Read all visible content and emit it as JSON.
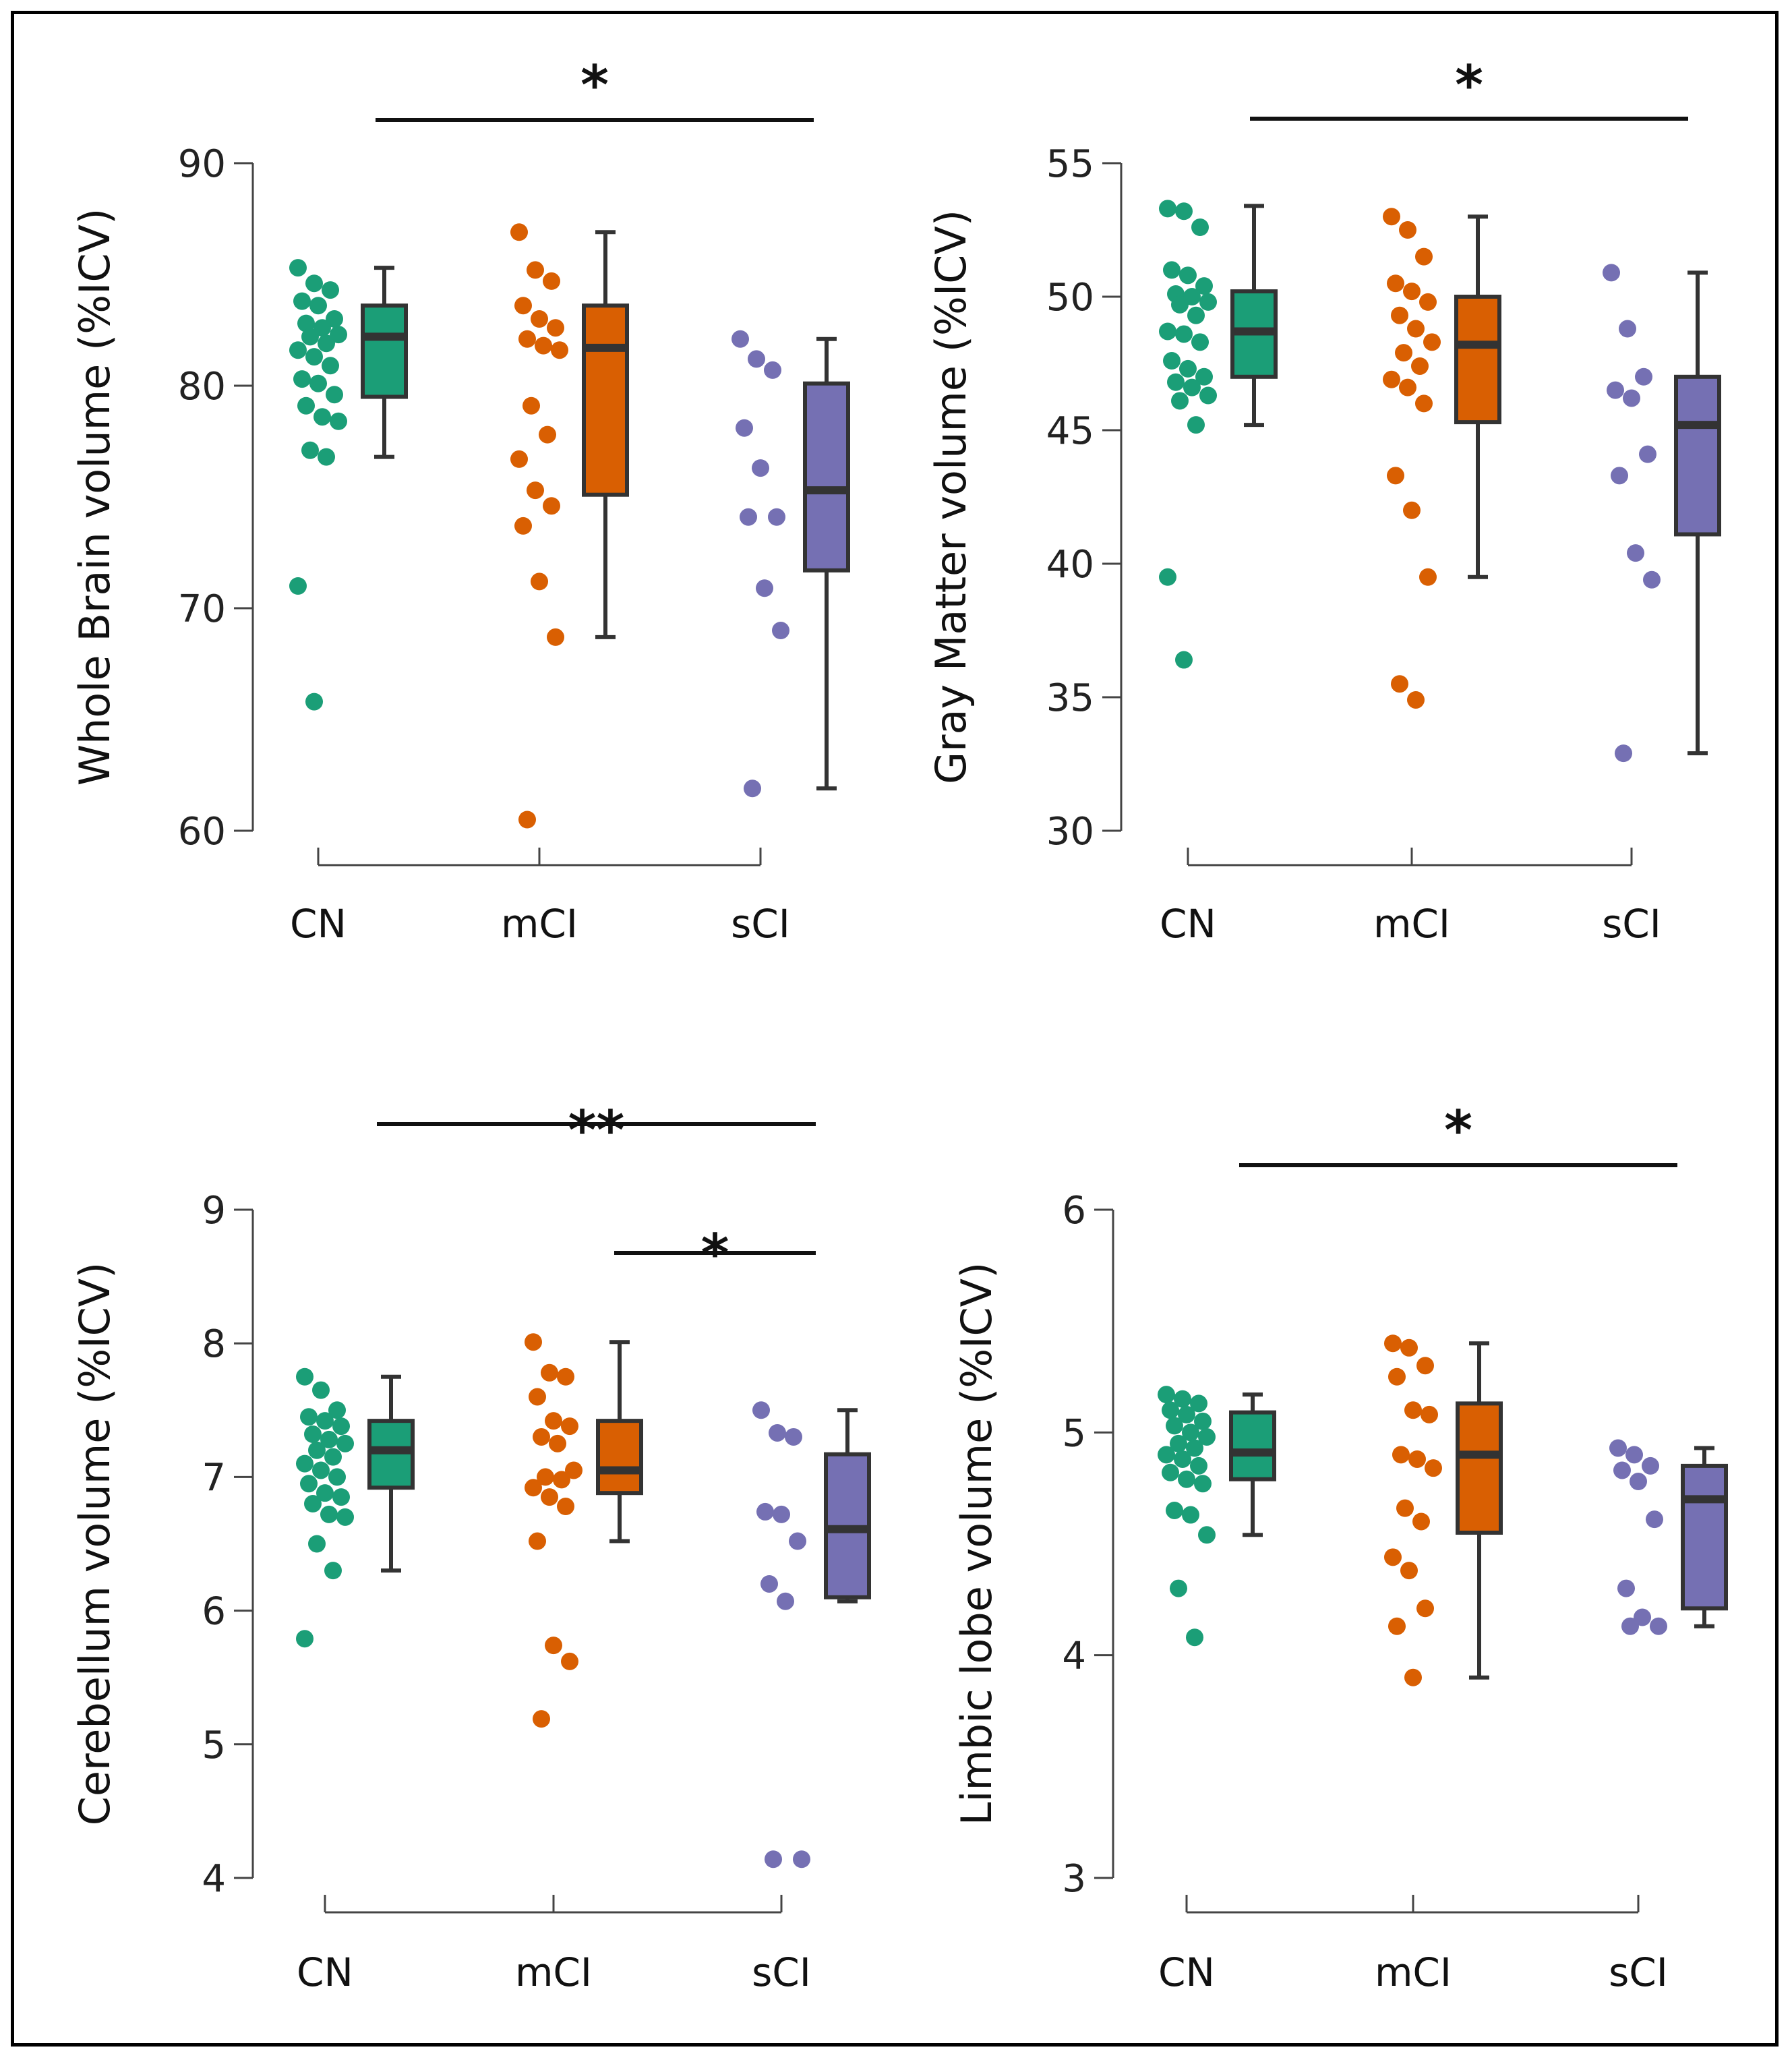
{
  "chart_data": [
    {
      "type": "box",
      "id": "whole-brain",
      "ylabel": "Whole Brain volume (%ICV)",
      "ylim": [
        60,
        90
      ],
      "yticks": [
        60,
        70,
        80,
        90
      ],
      "categories": [
        "CN",
        "mCI",
        "sCI"
      ],
      "colors": [
        "#1b9e77",
        "#d95f02",
        "#7570b3"
      ],
      "boxes": [
        {
          "group": "CN",
          "min": 76.8,
          "q1": 79.5,
          "median": 82.2,
          "q3": 83.6,
          "max": 85.3
        },
        {
          "group": "mCI",
          "min": 68.7,
          "q1": 75.1,
          "median": 81.7,
          "q3": 83.6,
          "max": 86.9
        },
        {
          "group": "sCI",
          "min": 61.9,
          "q1": 71.7,
          "median": 75.3,
          "q3": 80.1,
          "max": 82.1
        }
      ],
      "points": [
        {
          "group": "CN",
          "values": [
            85.3,
            84.6,
            84.3,
            83.8,
            83.6,
            83.0,
            82.8,
            82.6,
            82.3,
            82.2,
            81.9,
            81.6,
            81.3,
            80.9,
            80.3,
            80.1,
            79.6,
            79.1,
            78.6,
            78.4,
            77.1,
            76.8,
            71.0,
            65.8
          ]
        },
        {
          "group": "mCI",
          "values": [
            86.9,
            85.2,
            84.7,
            83.6,
            83.0,
            82.6,
            82.1,
            81.8,
            81.6,
            79.1,
            77.8,
            76.7,
            75.3,
            74.6,
            73.7,
            71.2,
            68.7,
            60.5
          ]
        },
        {
          "group": "sCI",
          "values": [
            82.1,
            81.2,
            80.7,
            78.1,
            76.3,
            74.1,
            74.1,
            70.9,
            69.0,
            61.9
          ]
        }
      ],
      "significance": [
        {
          "from": "CN",
          "to": "sCI",
          "label": "*"
        }
      ]
    },
    {
      "type": "box",
      "id": "gray-matter",
      "ylabel": "Gray Matter volume (%ICV)",
      "ylim": [
        30,
        55
      ],
      "yticks": [
        30,
        35,
        40,
        45,
        50,
        55
      ],
      "categories": [
        "CN",
        "mCI",
        "sCI"
      ],
      "colors": [
        "#1b9e77",
        "#d95f02",
        "#7570b3"
      ],
      "boxes": [
        {
          "group": "CN",
          "min": 45.2,
          "q1": 47.0,
          "median": 48.7,
          "q3": 50.2,
          "max": 53.4
        },
        {
          "group": "mCI",
          "min": 39.5,
          "q1": 45.3,
          "median": 48.2,
          "q3": 50.0,
          "max": 53.0
        },
        {
          "group": "sCI",
          "min": 32.9,
          "q1": 41.1,
          "median": 45.2,
          "q3": 47.0,
          "max": 50.9
        }
      ],
      "points": [
        {
          "group": "CN",
          "values": [
            53.3,
            53.2,
            52.6,
            51.0,
            50.8,
            50.4,
            50.1,
            50.0,
            49.8,
            49.7,
            49.3,
            48.7,
            48.6,
            48.3,
            47.6,
            47.3,
            47.0,
            46.8,
            46.6,
            46.3,
            46.1,
            45.2,
            39.5,
            36.4
          ]
        },
        {
          "group": "mCI",
          "values": [
            53.0,
            52.5,
            51.5,
            50.5,
            50.2,
            49.8,
            49.3,
            48.8,
            48.3,
            47.9,
            47.4,
            46.9,
            46.6,
            46.0,
            43.3,
            42.0,
            39.5,
            35.5,
            34.9
          ]
        },
        {
          "group": "sCI",
          "values": [
            50.9,
            48.8,
            47.0,
            46.5,
            46.2,
            44.1,
            43.3,
            40.4,
            39.4,
            32.9
          ]
        }
      ],
      "significance": [
        {
          "from": "CN",
          "to": "sCI",
          "label": "*"
        }
      ]
    },
    {
      "type": "box",
      "id": "cerebellum",
      "ylabel": "Cerebellum volume (%ICV)",
      "ylim": [
        4,
        9
      ],
      "yticks": [
        4,
        5,
        6,
        7,
        8,
        9
      ],
      "categories": [
        "CN",
        "mCI",
        "sCI"
      ],
      "colors": [
        "#1b9e77",
        "#d95f02",
        "#7570b3"
      ],
      "boxes": [
        {
          "group": "CN",
          "min": 6.3,
          "q1": 6.92,
          "median": 7.2,
          "q3": 7.42,
          "max": 7.75
        },
        {
          "group": "mCI",
          "min": 6.52,
          "q1": 6.88,
          "median": 7.05,
          "q3": 7.42,
          "max": 8.01
        },
        {
          "group": "sCI",
          "min": 6.07,
          "q1": 6.1,
          "median": 6.61,
          "q3": 7.17,
          "max": 7.5
        }
      ],
      "points": [
        {
          "group": "CN",
          "values": [
            7.75,
            7.65,
            7.5,
            7.45,
            7.42,
            7.38,
            7.32,
            7.28,
            7.25,
            7.2,
            7.15,
            7.1,
            7.05,
            7.0,
            6.95,
            6.88,
            6.85,
            6.8,
            6.72,
            6.7,
            6.5,
            6.3,
            5.79
          ]
        },
        {
          "group": "mCI",
          "values": [
            8.01,
            7.78,
            7.75,
            7.6,
            7.42,
            7.38,
            7.3,
            7.25,
            7.05,
            7.0,
            6.98,
            6.92,
            6.85,
            6.78,
            6.52,
            5.74,
            5.62,
            5.19
          ]
        },
        {
          "group": "sCI",
          "values": [
            7.5,
            7.33,
            7.3,
            6.74,
            6.72,
            6.52,
            6.2,
            6.07,
            4.14,
            4.14
          ]
        }
      ],
      "significance": [
        {
          "from": "CN",
          "to": "sCI",
          "label": "**"
        },
        {
          "from": "mCI",
          "to": "sCI",
          "label": "*"
        }
      ]
    },
    {
      "type": "box",
      "id": "limbic-lobe",
      "ylabel": "Limbic lobe volume (%ICV)",
      "ylim": [
        3,
        6
      ],
      "yticks": [
        3,
        4,
        5,
        6
      ],
      "categories": [
        "CN",
        "mCI",
        "sCI"
      ],
      "colors": [
        "#1b9e77",
        "#d95f02",
        "#7570b3"
      ],
      "boxes": [
        {
          "group": "CN",
          "min": 4.54,
          "q1": 4.79,
          "median": 4.91,
          "q3": 5.09,
          "max": 5.17
        },
        {
          "group": "mCI",
          "min": 3.9,
          "q1": 4.55,
          "median": 4.9,
          "q3": 5.13,
          "max": 5.4
        },
        {
          "group": "sCI",
          "min": 4.13,
          "q1": 4.21,
          "median": 4.7,
          "q3": 4.85,
          "max": 4.93
        }
      ],
      "points": [
        {
          "group": "CN",
          "values": [
            5.17,
            5.15,
            5.13,
            5.1,
            5.08,
            5.05,
            5.03,
            5.0,
            4.98,
            4.95,
            4.93,
            4.9,
            4.88,
            4.85,
            4.82,
            4.79,
            4.77,
            4.65,
            4.63,
            4.54,
            4.3,
            4.08
          ]
        },
        {
          "group": "mCI",
          "values": [
            5.4,
            5.38,
            5.3,
            5.25,
            5.1,
            5.08,
            4.9,
            4.88,
            4.84,
            4.66,
            4.6,
            4.44,
            4.38,
            4.21,
            4.13,
            3.9
          ]
        },
        {
          "group": "sCI",
          "values": [
            4.93,
            4.9,
            4.85,
            4.83,
            4.78,
            4.61,
            4.3,
            4.17,
            4.13,
            4.13
          ]
        }
      ],
      "significance": [
        {
          "from": "CN",
          "to": "sCI",
          "label": "*"
        }
      ]
    }
  ]
}
